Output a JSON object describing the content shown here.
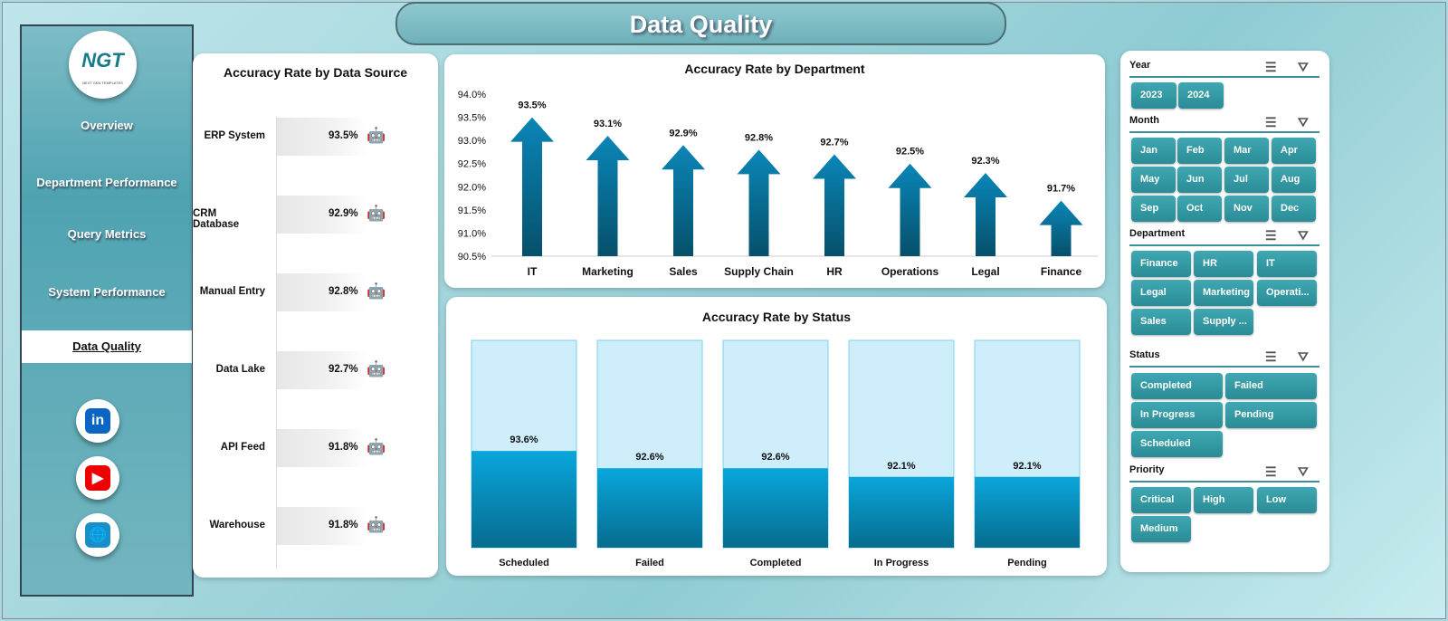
{
  "title": "Data Quality",
  "logo": {
    "text": "NGT",
    "subtitle": "NEXT GEN TEMPLATES"
  },
  "nav": [
    "Overview",
    "Department Performance",
    "Query Metrics",
    "System Performance",
    "Data Quality"
  ],
  "social": [
    {
      "icon": "linkedin-icon",
      "text": "in",
      "color": "#0a66c2"
    },
    {
      "icon": "youtube-icon",
      "text": "▶",
      "color": "#e00"
    },
    {
      "icon": "globe-icon",
      "text": "🌐",
      "color": "#1a8fc7"
    }
  ],
  "data_source": {
    "title": "Accuracy Rate by Data Source",
    "rows": [
      {
        "label": "ERP System",
        "value": "93.5%"
      },
      {
        "label": "CRM Database",
        "value": "92.9%"
      },
      {
        "label": "Manual Entry",
        "value": "92.8%"
      },
      {
        "label": "Data Lake",
        "value": "92.7%"
      },
      {
        "label": "API Feed",
        "value": "91.8%"
      },
      {
        "label": "Warehouse",
        "value": "91.8%"
      }
    ]
  },
  "chart_data": [
    {
      "type": "bar",
      "title": "Accuracy Rate by Department",
      "categories": [
        "IT",
        "Marketing",
        "Sales",
        "Supply Chain",
        "HR",
        "Operations",
        "Legal",
        "Finance"
      ],
      "values": [
        93.5,
        93.1,
        92.9,
        92.8,
        92.7,
        92.5,
        92.3,
        91.7
      ],
      "labels": [
        "93.5%",
        "93.1%",
        "92.9%",
        "92.8%",
        "92.7%",
        "92.5%",
        "92.3%",
        "91.7%"
      ],
      "ylim": [
        90.5,
        94.0
      ],
      "yticks": [
        "90.5%",
        "91.0%",
        "91.5%",
        "92.0%",
        "92.5%",
        "93.0%",
        "93.5%",
        "94.0%"
      ],
      "color": "#0a7ea8",
      "marker": "arrow"
    },
    {
      "type": "bar",
      "title": "Accuracy Rate by Status",
      "categories": [
        "Scheduled",
        "Failed",
        "Completed",
        "In Progress",
        "Pending"
      ],
      "values": [
        93.6,
        92.6,
        92.6,
        92.1,
        92.1
      ],
      "labels": [
        "93.6%",
        "92.6%",
        "92.6%",
        "92.1%",
        "92.1%"
      ],
      "ylim": [
        88,
        100
      ],
      "color": "#0aa0d6",
      "background_color": "#cdeefa"
    }
  ],
  "slicers": {
    "year": {
      "title": "Year",
      "items": [
        "2023",
        "2024"
      ]
    },
    "month": {
      "title": "Month",
      "items": [
        "Jan",
        "Feb",
        "Mar",
        "Apr",
        "May",
        "Jun",
        "Jul",
        "Aug",
        "Sep",
        "Oct",
        "Nov",
        "Dec"
      ]
    },
    "department": {
      "title": "Department",
      "items": [
        "Finance",
        "HR",
        "IT",
        "Legal",
        "Marketing",
        "Operati...",
        "Sales",
        "Supply ..."
      ]
    },
    "status": {
      "title": "Status",
      "items": [
        "Completed",
        "Failed",
        "In Progress",
        "Pending",
        "Scheduled"
      ]
    },
    "priority": {
      "title": "Priority",
      "items": [
        "Critical",
        "High",
        "Low",
        "Medium"
      ]
    }
  }
}
